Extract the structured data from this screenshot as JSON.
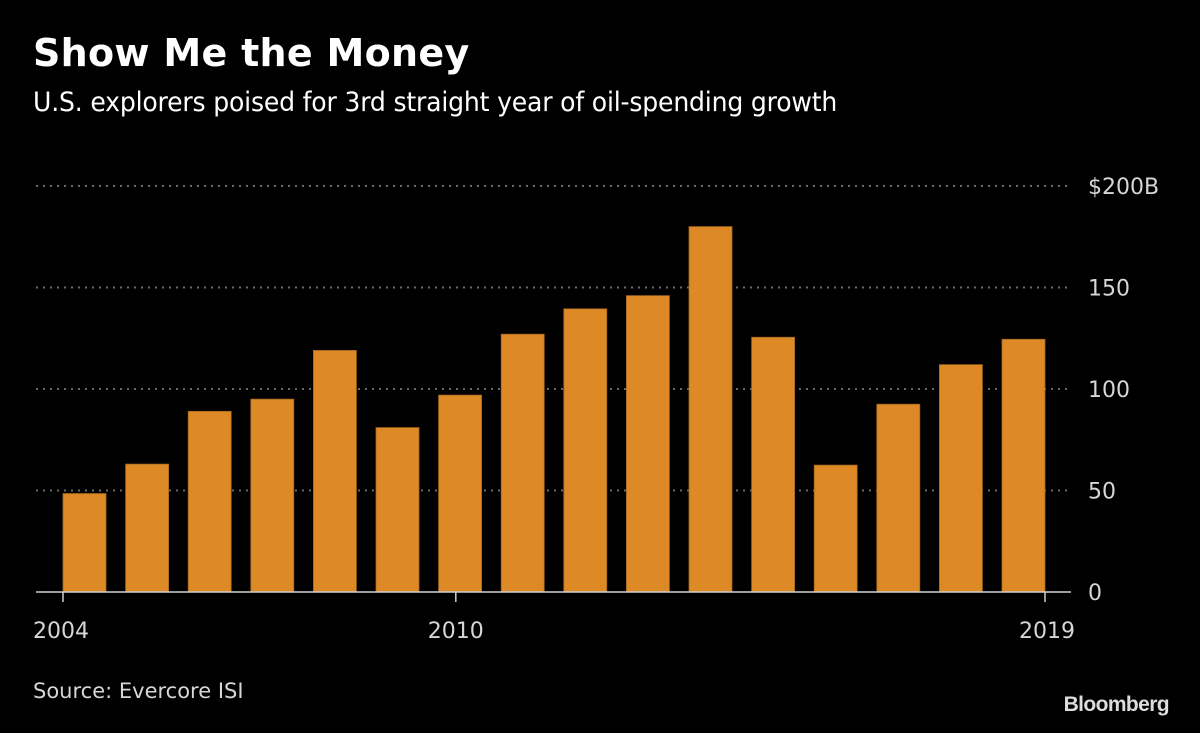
{
  "header": {
    "title": "Show Me the Money",
    "subtitle": "U.S. explorers poised for 3rd straight year of oil-spending growth"
  },
  "footer": {
    "source": "Source: Evercore ISI",
    "logo": "Bloomberg"
  },
  "colors": {
    "background": "#000000",
    "bar": "#DD8A26",
    "bar_edge": "#A2661F",
    "grid": "#6a6a6a",
    "axis": "#cfcfcf",
    "text": "#d6d6d6"
  },
  "chart_data": {
    "type": "bar",
    "title": "Show Me the Money",
    "subtitle": "U.S. explorers poised for 3rd straight year of oil-spending growth",
    "xlabel": "",
    "ylabel": "",
    "units": "billions of USD",
    "categories": [
      "2004",
      "2005",
      "2006",
      "2007",
      "2008",
      "2009",
      "2010",
      "2011",
      "2012",
      "2013",
      "2014",
      "2015",
      "2016",
      "2017",
      "2018",
      "2019"
    ],
    "values": [
      48.5,
      63,
      89,
      95,
      119,
      81,
      97,
      127,
      139.5,
      146,
      180,
      125.5,
      62.5,
      92.5,
      112,
      124.5
    ],
    "ylim": [
      0,
      200
    ],
    "yticks": [
      {
        "value": 0,
        "label": "0"
      },
      {
        "value": 50,
        "label": "50"
      },
      {
        "value": 100,
        "label": "100"
      },
      {
        "value": 150,
        "label": "150"
      },
      {
        "value": 200,
        "label": "$200B"
      }
    ],
    "xticks": [
      {
        "category": "2004",
        "label": "2004",
        "anchor": "start"
      },
      {
        "category": "2010",
        "label": "2010",
        "anchor": "middle"
      },
      {
        "category": "2019",
        "label": "2019",
        "anchor": "end"
      }
    ],
    "grid": true,
    "grid_style": "dotted",
    "y_axis_side": "right",
    "legend": "none",
    "source": "Source: Evercore ISI"
  }
}
